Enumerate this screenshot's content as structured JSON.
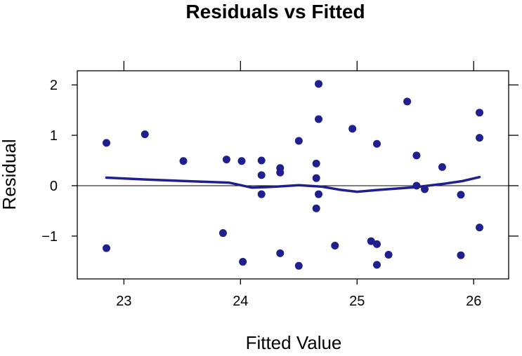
{
  "chart_data": {
    "type": "scatter",
    "title": "Residuals vs Fitted",
    "xlabel": "Fitted Value",
    "ylabel": "Residual",
    "xlim": [
      22.6,
      26.3
    ],
    "ylim": [
      -1.85,
      2.28
    ],
    "xticks": [
      23,
      24,
      25,
      26
    ],
    "yticks": [
      -1,
      0,
      1,
      2
    ],
    "xtick_labels": [
      "23",
      "24",
      "25",
      "26"
    ],
    "ytick_labels": [
      "−1",
      "0",
      "1",
      "2"
    ],
    "reference_line_y": 0,
    "grid": false,
    "legend": "none",
    "point_color": "#1f1f8f",
    "smooth_color": "#1f1f8f",
    "points": [
      {
        "x": 22.85,
        "y": 0.85
      },
      {
        "x": 22.85,
        "y": -1.24
      },
      {
        "x": 23.18,
        "y": 1.02
      },
      {
        "x": 23.51,
        "y": 0.49
      },
      {
        "x": 23.85,
        "y": -0.94
      },
      {
        "x": 23.88,
        "y": 0.52
      },
      {
        "x": 24.01,
        "y": 0.49
      },
      {
        "x": 24.02,
        "y": -1.51
      },
      {
        "x": 24.18,
        "y": 0.5
      },
      {
        "x": 24.18,
        "y": 0.21
      },
      {
        "x": 24.18,
        "y": -0.17
      },
      {
        "x": 24.34,
        "y": 0.35
      },
      {
        "x": 24.34,
        "y": 0.26
      },
      {
        "x": 24.34,
        "y": -1.34
      },
      {
        "x": 24.5,
        "y": 0.89
      },
      {
        "x": 24.5,
        "y": -1.59
      },
      {
        "x": 24.65,
        "y": 0.44
      },
      {
        "x": 24.65,
        "y": 0.15
      },
      {
        "x": 24.65,
        "y": -0.45
      },
      {
        "x": 24.67,
        "y": 2.02
      },
      {
        "x": 24.67,
        "y": 1.32
      },
      {
        "x": 24.67,
        "y": -0.17
      },
      {
        "x": 24.81,
        "y": -1.19
      },
      {
        "x": 24.96,
        "y": 1.13
      },
      {
        "x": 25.12,
        "y": -1.1
      },
      {
        "x": 25.17,
        "y": 0.83
      },
      {
        "x": 25.17,
        "y": -1.16
      },
      {
        "x": 25.17,
        "y": -1.57
      },
      {
        "x": 25.27,
        "y": -1.37
      },
      {
        "x": 25.43,
        "y": 1.67
      },
      {
        "x": 25.51,
        "y": 0.6
      },
      {
        "x": 25.51,
        "y": 0.0
      },
      {
        "x": 25.58,
        "y": -0.07
      },
      {
        "x": 25.73,
        "y": 0.37
      },
      {
        "x": 25.89,
        "y": -0.18
      },
      {
        "x": 25.89,
        "y": -1.38
      },
      {
        "x": 26.05,
        "y": 1.45
      },
      {
        "x": 26.05,
        "y": 0.95
      },
      {
        "x": 26.05,
        "y": -0.83
      }
    ],
    "smooth_line": [
      {
        "x": 22.85,
        "y": 0.16
      },
      {
        "x": 23.2,
        "y": 0.12
      },
      {
        "x": 23.55,
        "y": 0.09
      },
      {
        "x": 23.9,
        "y": 0.06
      },
      {
        "x": 24.1,
        "y": -0.04
      },
      {
        "x": 24.3,
        "y": -0.02
      },
      {
        "x": 24.5,
        "y": 0.01
      },
      {
        "x": 24.7,
        "y": -0.02
      },
      {
        "x": 24.85,
        "y": -0.08
      },
      {
        "x": 25.0,
        "y": -0.12
      },
      {
        "x": 25.2,
        "y": -0.08
      },
      {
        "x": 25.5,
        "y": -0.03
      },
      {
        "x": 25.75,
        "y": 0.04
      },
      {
        "x": 25.9,
        "y": 0.09
      },
      {
        "x": 26.05,
        "y": 0.17
      }
    ]
  }
}
